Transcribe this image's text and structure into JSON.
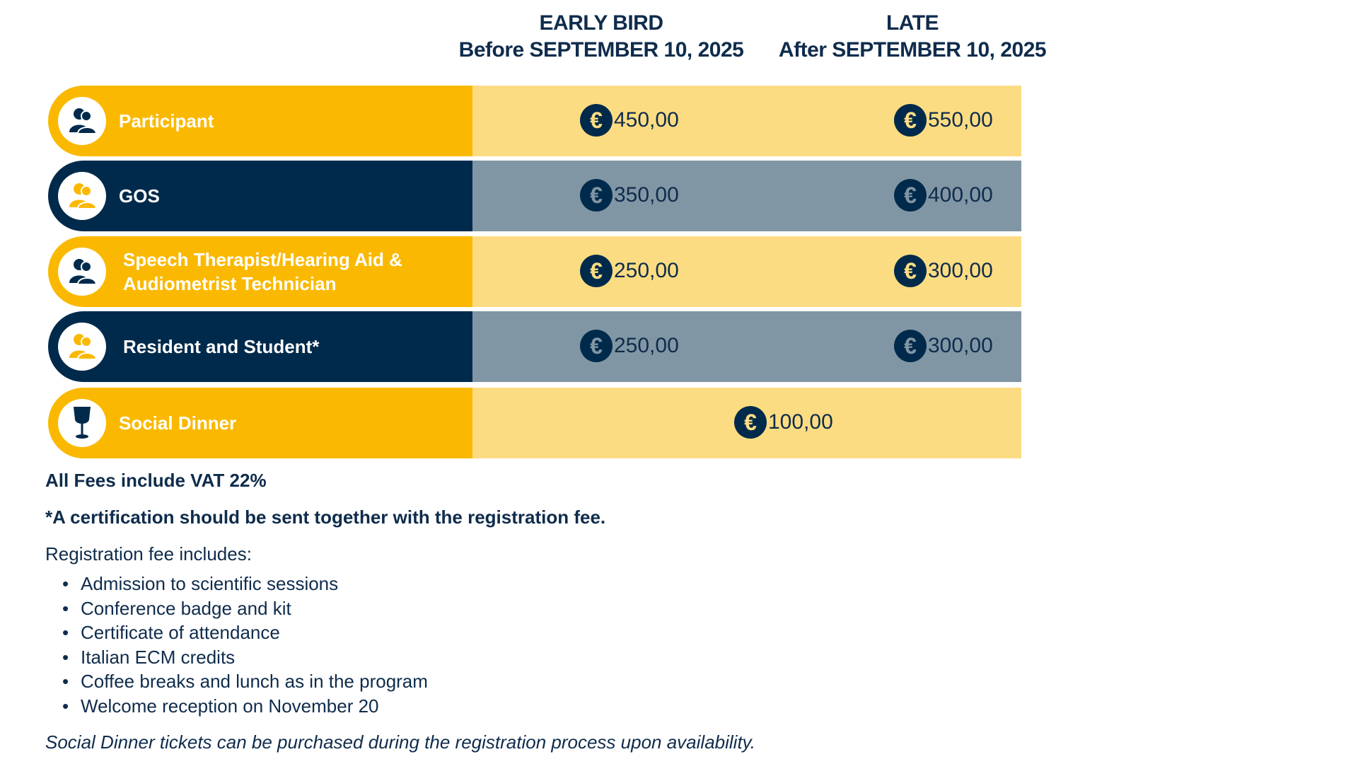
{
  "headers": {
    "early_line1": "EARLY BIRD",
    "early_line2": "Before SEPTEMBER 10, 2025",
    "late_line1": "LATE",
    "late_line2": "After  SEPTEMBER 10, 2025"
  },
  "rows": [
    {
      "label": "Participant",
      "icon": "people-icon",
      "early": "450,00",
      "late": "550,00"
    },
    {
      "label": "GOS",
      "icon": "people-icon",
      "early": "350,00",
      "late": "400,00"
    },
    {
      "label_line1": "Speech Therapist/Hearing Aid &",
      "label_line2": "Audiometrist Technician",
      "icon": "people-icon",
      "early": "250,00",
      "late": "300,00"
    },
    {
      "label": "Resident and Student*",
      "icon": "people-icon",
      "early": "250,00",
      "late": "300,00"
    },
    {
      "label": "Social Dinner",
      "icon": "wine-glass-icon",
      "price": "100,00"
    }
  ],
  "currency_symbol": "€",
  "notes": {
    "vat": "All Fees include VAT 22%",
    "certification": "*A certification should be sent together with the registration fee.",
    "includes_title": "Registration fee includes:",
    "includes": [
      "Admission to scientific sessions",
      "Conference badge and kit",
      "Certificate of attendance",
      "Italian ECM credits",
      "Coffee breaks and lunch as in the program",
      "Welcome reception on November 20"
    ],
    "dinner_note": "Social Dinner tickets can be purchased during the registration process upon availability."
  },
  "colors": {
    "navy": "#002a4b",
    "yellow": "#fab900",
    "light_yellow": "#fcdc82",
    "slate": "#8196a4"
  }
}
